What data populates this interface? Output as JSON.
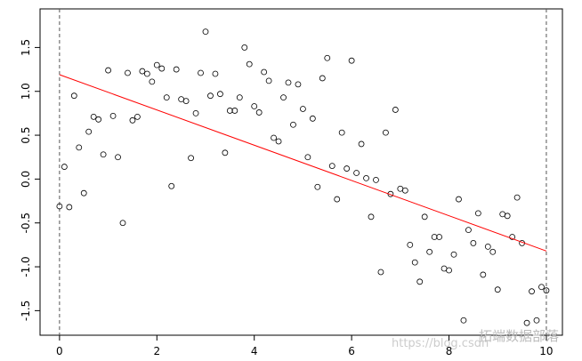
{
  "chart_data": {
    "type": "scatter",
    "x": [
      0,
      0.1,
      0.2,
      0.3,
      0.4,
      0.5,
      0.6,
      0.7,
      0.8,
      0.9,
      1,
      1.1,
      1.2,
      1.3,
      1.4,
      1.5,
      1.6,
      1.7,
      1.8,
      1.9,
      2,
      2.1,
      2.2,
      2.3,
      2.4,
      2.5,
      2.6,
      2.7,
      2.8,
      2.9,
      3,
      3.1,
      3.2,
      3.3,
      3.4,
      3.5,
      3.6,
      3.7,
      3.8,
      3.9,
      4,
      4.1,
      4.2,
      4.3,
      4.4,
      4.5,
      4.6,
      4.7,
      4.8,
      4.9,
      5,
      5.1,
      5.2,
      5.3,
      5.4,
      5.5,
      5.6,
      5.7,
      5.8,
      5.9,
      6,
      6.1,
      6.2,
      6.3,
      6.4,
      6.5,
      6.6,
      6.7,
      6.8,
      6.9,
      7,
      7.1,
      7.2,
      7.3,
      7.4,
      7.5,
      7.6,
      7.7,
      7.8,
      7.9,
      8,
      8.1,
      8.2,
      8.3,
      8.4,
      8.5,
      8.6,
      8.7,
      8.8,
      8.9,
      9,
      9.1,
      9.2,
      9.3,
      9.4,
      9.5,
      9.6,
      9.7,
      9.8,
      9.9,
      10
    ],
    "values": [
      -0.31,
      0.14,
      -0.32,
      0.95,
      0.36,
      -0.16,
      0.54,
      0.71,
      0.68,
      0.28,
      1.24,
      0.72,
      0.25,
      -0.5,
      1.21,
      0.67,
      0.71,
      1.23,
      1.2,
      1.11,
      1.3,
      1.26,
      0.93,
      -0.08,
      1.25,
      0.91,
      0.89,
      0.24,
      0.75,
      1.21,
      1.68,
      0.95,
      1.2,
      0.97,
      0.3,
      0.78,
      0.78,
      0.93,
      1.5,
      1.31,
      0.83,
      0.76,
      1.22,
      1.12,
      0.47,
      0.43,
      0.93,
      1.1,
      0.62,
      1.08,
      0.8,
      0.25,
      0.69,
      -0.09,
      1.15,
      1.38,
      0.15,
      -0.23,
      0.53,
      0.12,
      1.35,
      0.07,
      0.4,
      0.01,
      -0.43,
      -0.01,
      -1.06,
      0.53,
      -0.17,
      0.79,
      -0.11,
      -0.13,
      -0.75,
      -0.95,
      -1.17,
      -0.43,
      -0.83,
      -0.66,
      -0.66,
      -1.02,
      -1.04,
      -0.86,
      -0.23,
      -1.61,
      -0.58,
      -0.73,
      -0.39,
      -1.09,
      -0.77,
      -0.83,
      -1.26,
      -0.4,
      -0.42,
      -0.66,
      -0.21,
      -0.73,
      -1.64,
      -1.28,
      -1.61,
      -1.23,
      -1.27
    ],
    "color": "#000000",
    "fit_line": {
      "x": [
        0,
        10
      ],
      "y": [
        1.19,
        -0.82
      ],
      "color": "#ff0000"
    },
    "vlines": [
      0,
      10
    ],
    "xlim": [
      -0.4,
      10.33
    ],
    "ylim": [
      -1.78,
      1.94
    ],
    "xticks": [
      0,
      2,
      4,
      6,
      8,
      10
    ],
    "yticks": [
      -1.5,
      {
        "value": -1,
        "label": "-1.0"
      },
      -0.5,
      {
        "value": 0,
        "label": "0.0"
      },
      0.5,
      {
        "value": 1,
        "label": "1.0"
      },
      1.5
    ],
    "watermark_url": "https://blog.csdn",
    "watermark_text": "拓端数据部落"
  }
}
